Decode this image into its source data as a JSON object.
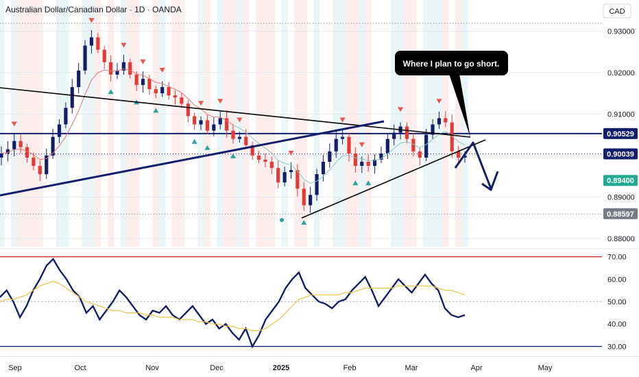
{
  "header": {
    "title": "Australian Dollar/Canadian Dollar · 1D · OANDA"
  },
  "currency_label": "CAD",
  "annotation": {
    "text": "Where I plan to go short."
  },
  "price_badges": [
    {
      "value": "0.90529",
      "bg": "#131f6b",
      "fg": "#ffffff"
    },
    {
      "value": "0.90039",
      "bg": "#131f6b",
      "fg": "#ffffff"
    },
    {
      "value": "0.89400",
      "bg": "#22ab94",
      "fg": "#ffffff"
    },
    {
      "value": "0.88597",
      "bg": "#787b86",
      "fg": "#ffffff"
    }
  ],
  "chart_data": [
    {
      "type": "candlestick",
      "title": "Australian Dollar/Canadian Dollar · 1D · OANDA",
      "y_axis_ticks": [
        0.93,
        0.92,
        0.91,
        0.9,
        0.89,
        0.88
      ],
      "y_tick_labels": [
        "0.93000",
        "0.92000",
        "0.91000",
        "0.90000",
        "0.89000",
        "0.88000"
      ],
      "ylim": [
        0.878,
        0.9375
      ],
      "x_tick_labels": [
        "Sep",
        "Oct",
        "Nov",
        "Dec",
        "2025",
        "Feb",
        "Mar",
        "Apr",
        "May"
      ],
      "horizontal_levels": [
        0.90529,
        0.90039
      ],
      "close_path": [
        0.9005,
        0.9015,
        0.9035,
        0.902,
        0.8995,
        0.8975,
        0.8955,
        0.9,
        0.9045,
        0.9075,
        0.9115,
        0.9165,
        0.9205,
        0.9265,
        0.9285,
        0.9255,
        0.9225,
        0.9195,
        0.9205,
        0.9225,
        0.9195,
        0.917,
        0.9185,
        0.916,
        0.915,
        0.9165,
        0.9145,
        0.914,
        0.9125,
        0.9095,
        0.9075,
        0.9085,
        0.906,
        0.9075,
        0.909,
        0.906,
        0.904,
        0.9045,
        0.9025,
        0.9,
        0.899,
        0.8985,
        0.897,
        0.8935,
        0.896,
        0.8965,
        0.892,
        0.888,
        0.8905,
        0.8955,
        0.8985,
        0.901,
        0.904,
        0.9045,
        0.9005,
        0.8975,
        0.8985,
        0.8975,
        0.899,
        0.9005,
        0.904,
        0.9055,
        0.907,
        0.904,
        0.901,
        0.8995,
        0.905,
        0.9075,
        0.909,
        0.908,
        0.901,
        0.8995,
        0.9
      ],
      "trend_lines": [
        "descending resistance",
        "ascending support (long)",
        "ascending support (short)"
      ],
      "projection": "arrow pointing down from ~0.905 toward ~0.894"
    },
    {
      "type": "line",
      "y_axis_ticks": [
        70,
        60,
        50,
        40,
        30
      ],
      "y_tick_labels": [
        "70.00",
        "60.00",
        "50.00",
        "40.00",
        "30.00"
      ],
      "ylim": [
        28,
        72
      ],
      "levels": [
        70,
        50,
        30
      ],
      "series": [
        {
          "values": [
            52,
            55,
            50,
            43,
            48,
            55,
            60,
            66,
            69,
            64,
            60,
            55,
            52,
            45,
            48,
            42,
            46,
            50,
            55,
            52,
            48,
            44,
            42,
            46,
            45,
            48,
            44,
            42,
            45,
            48,
            44,
            40,
            42,
            38,
            40,
            36,
            33,
            38,
            30,
            35,
            42,
            46,
            50,
            56,
            60,
            63,
            56,
            53,
            50,
            49,
            47,
            50,
            51,
            55,
            58,
            61,
            55,
            48,
            52,
            56,
            60,
            57,
            54,
            58,
            62,
            58,
            55,
            47,
            44,
            43,
            44
          ],
          "color": "#131f6b"
        },
        {
          "values": [
            50,
            51,
            51,
            52,
            53,
            55,
            57,
            58,
            59,
            58,
            56,
            54,
            52,
            50,
            49,
            48,
            47,
            46,
            46,
            45,
            45,
            45,
            44,
            44,
            43,
            43,
            43,
            42,
            42,
            42,
            41,
            41,
            40,
            40,
            39,
            39,
            38,
            38,
            37,
            37,
            38,
            40,
            42,
            45,
            48,
            51,
            52,
            53,
            53,
            53,
            53,
            53,
            54,
            54,
            55,
            56,
            56,
            56,
            56,
            56,
            57,
            57,
            57,
            57,
            57,
            57,
            56,
            55,
            55,
            54,
            53
          ],
          "color": "#e8c547"
        }
      ]
    }
  ]
}
